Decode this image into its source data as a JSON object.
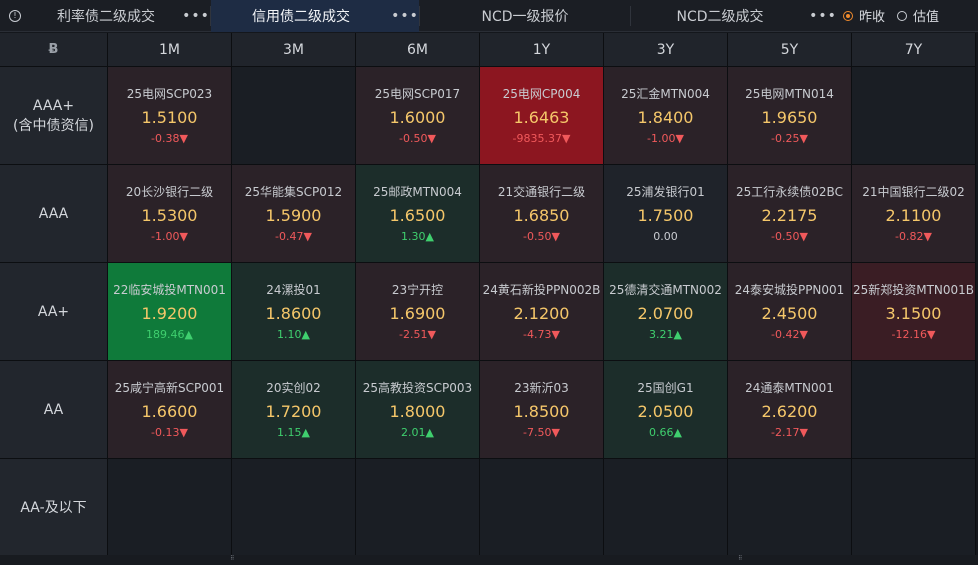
{
  "tabs": [
    {
      "label": "利率债二级成交",
      "more": "•••",
      "active": false
    },
    {
      "label": "信用债二级成交",
      "more": "•••",
      "active": true
    },
    {
      "label": "NCD一级报价",
      "more": "",
      "active": false
    },
    {
      "label": "NCD二级成交",
      "more": "•••",
      "active": false
    }
  ],
  "radios": [
    {
      "label": "昨收",
      "checked": true
    },
    {
      "label": "估值",
      "checked": false
    }
  ],
  "corner_icon": "Ƀ",
  "columns": [
    "1M",
    "3M",
    "6M",
    "1Y",
    "3Y",
    "5Y",
    "7Y"
  ],
  "rows": [
    {
      "label_lines": [
        "AAA+",
        "(含中债资信)"
      ]
    },
    {
      "label_lines": [
        "AAA"
      ]
    },
    {
      "label_lines": [
        "AA+"
      ]
    },
    {
      "label_lines": [
        "AA"
      ]
    },
    {
      "label_lines": [
        "AA-及以下"
      ]
    }
  ],
  "cells": [
    [
      {
        "name": "25电网SCP023",
        "rate": "1.5100",
        "change": "-0.38▼",
        "dir": "down",
        "tone": "red1"
      },
      null,
      {
        "name": "25电网SCP017",
        "rate": "1.6000",
        "change": "-0.50▼",
        "dir": "down",
        "tone": "red1"
      },
      {
        "name": "25电网CP004",
        "rate": "1.6463",
        "change": "-9835.37▼",
        "dir": "down",
        "tone": "redhi"
      },
      {
        "name": "25汇金MTN004",
        "rate": "1.8400",
        "change": "-1.00▼",
        "dir": "down",
        "tone": "red1"
      },
      {
        "name": "25电网MTN014",
        "rate": "1.9650",
        "change": "-0.25▼",
        "dir": "down",
        "tone": "red1"
      },
      null
    ],
    [
      {
        "name": "20长沙银行二级",
        "rate": "1.5300",
        "change": "-1.00▼",
        "dir": "down",
        "tone": "red1"
      },
      {
        "name": "25华能集SCP012",
        "rate": "1.5900",
        "change": "-0.47▼",
        "dir": "down",
        "tone": "red1"
      },
      {
        "name": "25邮政MTN004",
        "rate": "1.6500",
        "change": "1.30▲",
        "dir": "up",
        "tone": "green1"
      },
      {
        "name": "21交通银行二级",
        "rate": "1.6850",
        "change": "-0.50▼",
        "dir": "down",
        "tone": "red1"
      },
      {
        "name": "25浦发银行01",
        "rate": "1.7500",
        "change": "0.00",
        "dir": "flat",
        "tone": "gray"
      },
      {
        "name": "25工行永续债02BC",
        "rate": "2.2175",
        "change": "-0.50▼",
        "dir": "down",
        "tone": "red1"
      },
      {
        "name": "21中国银行二级02",
        "rate": "2.1100",
        "change": "-0.82▼",
        "dir": "down",
        "tone": "red1"
      }
    ],
    [
      {
        "name": "22临安城投MTN001",
        "rate": "1.9200",
        "change": "189.46▲",
        "dir": "up",
        "tone": "greenhi"
      },
      {
        "name": "24漯投01",
        "rate": "1.8600",
        "change": "1.10▲",
        "dir": "up",
        "tone": "green1"
      },
      {
        "name": "23宁开控",
        "rate": "1.6900",
        "change": "-2.51▼",
        "dir": "down",
        "tone": "red1"
      },
      {
        "name": "24黄石新投PPN002B",
        "rate": "2.1200",
        "change": "-4.73▼",
        "dir": "down",
        "tone": "red1"
      },
      {
        "name": "25德清交通MTN002",
        "rate": "2.0700",
        "change": "3.21▲",
        "dir": "up",
        "tone": "green1"
      },
      {
        "name": "24泰安城投PPN001",
        "rate": "2.4500",
        "change": "-0.42▼",
        "dir": "down",
        "tone": "red1"
      },
      {
        "name": "25新郑投资MTN001B",
        "rate": "3.1500",
        "change": "-12.16▼",
        "dir": "down",
        "tone": "red2"
      }
    ],
    [
      {
        "name": "25咸宁高新SCP001",
        "rate": "1.6600",
        "change": "-0.13▼",
        "dir": "down",
        "tone": "red1"
      },
      {
        "name": "20实创02",
        "rate": "1.7200",
        "change": "1.15▲",
        "dir": "up",
        "tone": "green1"
      },
      {
        "name": "25高教投资SCP003",
        "rate": "1.8000",
        "change": "2.01▲",
        "dir": "up",
        "tone": "green1"
      },
      {
        "name": "23新沂03",
        "rate": "1.8500",
        "change": "-7.50▼",
        "dir": "down",
        "tone": "red1"
      },
      {
        "name": "25国创G1",
        "rate": "2.0500",
        "change": "0.66▲",
        "dir": "up",
        "tone": "green1"
      },
      {
        "name": "24通泰MTN001",
        "rate": "2.6200",
        "change": "-2.17▼",
        "dir": "down",
        "tone": "red1"
      },
      null
    ],
    [
      null,
      null,
      null,
      null,
      null,
      null,
      null
    ]
  ]
}
